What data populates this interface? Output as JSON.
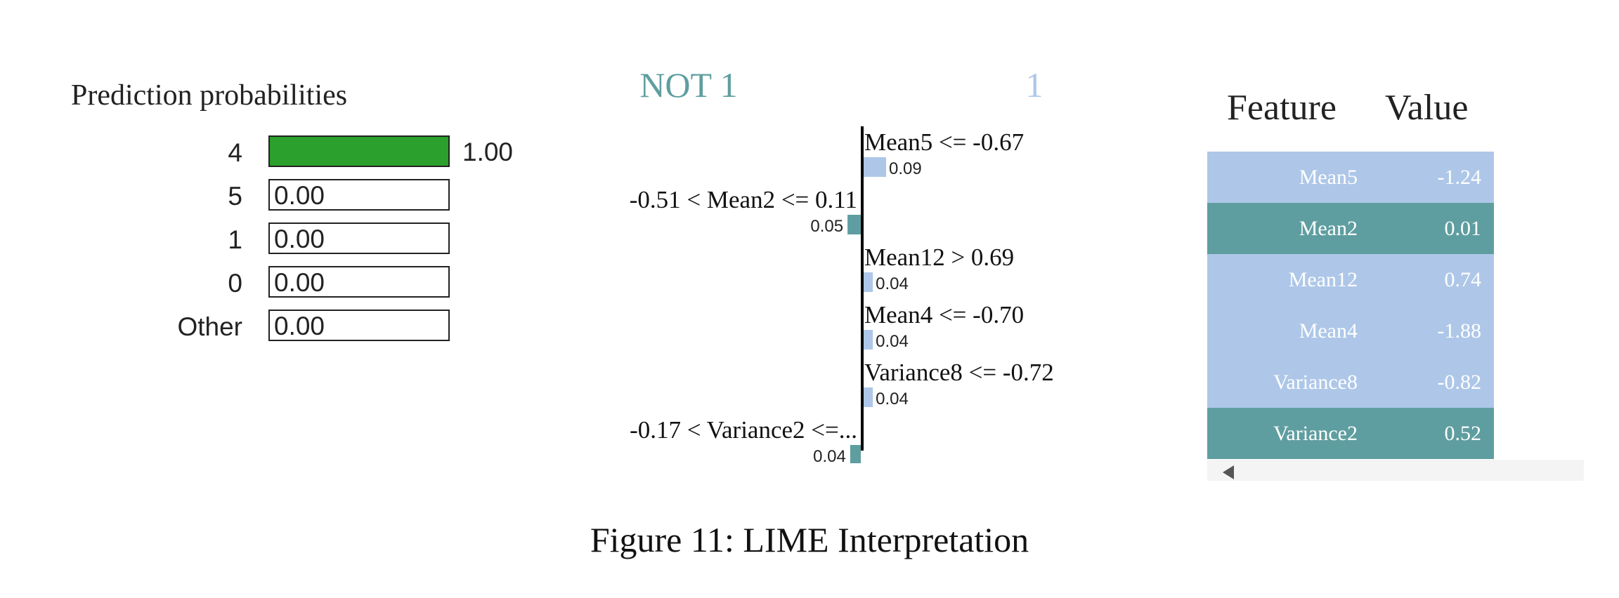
{
  "prediction_probabilities": {
    "title": "Prediction probabilities",
    "rows": [
      {
        "label": "4",
        "value": 1.0,
        "text": "1.00"
      },
      {
        "label": "5",
        "value": 0.0,
        "text": "0.00"
      },
      {
        "label": "1",
        "value": 0.0,
        "text": "0.00"
      },
      {
        "label": "0",
        "value": 0.0,
        "text": "0.00"
      },
      {
        "label": "Other",
        "value": 0.0,
        "text": "0.00"
      }
    ],
    "bar_color": "#2ca02c"
  },
  "explanation": {
    "left_title": "NOT 1",
    "right_title": "1",
    "left_color": "#5f9ea0",
    "right_color": "#aec7e8",
    "items": [
      {
        "label": "Mean5 <= -0.67",
        "weight": 0.09,
        "text": "0.09",
        "side": "right"
      },
      {
        "label": "-0.51 < Mean2 <= 0.11",
        "weight": 0.05,
        "text": "0.05",
        "side": "left"
      },
      {
        "label": "Mean12 > 0.69",
        "weight": 0.04,
        "text": "0.04",
        "side": "right"
      },
      {
        "label": "Mean4 <= -0.70",
        "weight": 0.04,
        "text": "0.04",
        "side": "right"
      },
      {
        "label": "Variance8 <= -0.72",
        "weight": 0.04,
        "text": "0.04",
        "side": "right"
      },
      {
        "label": "-0.17 < Variance2 <=...",
        "weight": 0.04,
        "text": "0.04",
        "side": "left"
      }
    ]
  },
  "feature_table": {
    "header_feature": "Feature",
    "header_value": "Value",
    "rows": [
      {
        "feature": "Mean5",
        "value": "-1.24",
        "color": "#aec7e8"
      },
      {
        "feature": "Mean2",
        "value": "0.01",
        "color": "#5f9ea0"
      },
      {
        "feature": "Mean12",
        "value": "0.74",
        "color": "#aec7e8"
      },
      {
        "feature": "Mean4",
        "value": "-1.88",
        "color": "#aec7e8"
      },
      {
        "feature": "Variance8",
        "value": "-0.82",
        "color": "#aec7e8"
      },
      {
        "feature": "Variance2",
        "value": "0.52",
        "color": "#5f9ea0"
      }
    ]
  },
  "caption": "Figure 11: LIME Interpretation",
  "chart_data": [
    {
      "type": "bar",
      "title": "Prediction probabilities",
      "categories": [
        "4",
        "5",
        "1",
        "0",
        "Other"
      ],
      "values": [
        1.0,
        0.0,
        0.0,
        0.0,
        0.0
      ],
      "xlim": [
        0,
        1
      ]
    },
    {
      "type": "bar",
      "categories": [
        "Mean5 <= -0.67",
        "-0.51 < Mean2 <= 0.11",
        "Mean12 > 0.69",
        "Mean4 <= -0.70",
        "Variance8 <= -0.72",
        "-0.17 < Variance2 <=..."
      ],
      "values": [
        0.09,
        -0.05,
        0.04,
        0.04,
        0.04,
        -0.04
      ],
      "series": [
        {
          "name": "NOT 1",
          "values": [
            0,
            0.05,
            0,
            0,
            0,
            0.04
          ]
        },
        {
          "name": "1",
          "values": [
            0.09,
            0,
            0.04,
            0.04,
            0.04,
            0
          ]
        }
      ]
    },
    {
      "type": "table",
      "columns": [
        "Feature",
        "Value"
      ],
      "rows": [
        [
          "Mean5",
          "-1.24"
        ],
        [
          "Mean2",
          "0.01"
        ],
        [
          "Mean12",
          "0.74"
        ],
        [
          "Mean4",
          "-1.88"
        ],
        [
          "Variance8",
          "-0.82"
        ],
        [
          "Variance2",
          "0.52"
        ]
      ]
    }
  ]
}
